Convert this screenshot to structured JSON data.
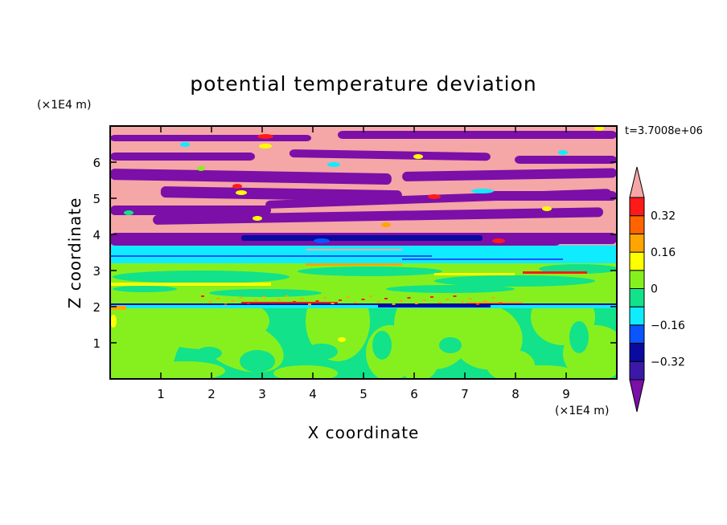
{
  "chart_data": {
    "type": "heatmap",
    "title": "potential temperature deviation",
    "xlabel": "X coordinate",
    "ylabel": "Z coordinate",
    "x_unit": "(×1E4 m)",
    "y_unit": "(×1E4 m)",
    "time_label": "t=3.7008e+06",
    "xlim": [
      0,
      10
    ],
    "ylim": [
      0,
      7
    ],
    "x_ticks": [
      1,
      2,
      3,
      4,
      5,
      6,
      7,
      8,
      9
    ],
    "y_ticks": [
      1,
      2,
      3,
      4,
      5,
      6
    ],
    "x_tick_labels": [
      "1",
      "2",
      "3",
      "4",
      "5",
      "6",
      "7",
      "8",
      "9"
    ],
    "y_tick_labels": [
      "1",
      "2",
      "3",
      "4",
      "5",
      "6"
    ],
    "colorbar": {
      "levels": [
        -0.4,
        -0.32,
        -0.24,
        -0.16,
        -0.08,
        0,
        0.08,
        0.16,
        0.24,
        0.32,
        0.4
      ],
      "colors": [
        "#7b0fa8",
        "#3b18a8",
        "#0a0aa0",
        "#0a55ff",
        "#10ecff",
        "#12e28a",
        "#86f01e",
        "#ffff00",
        "#ffa500",
        "#ff6400",
        "#ff1a1a",
        "#f5a6a6"
      ],
      "tick_labels": [
        "0.32",
        "0.16",
        "0",
        "−0.16",
        "−0.32"
      ],
      "tick_values": [
        0.32,
        0.16,
        0,
        -0.16,
        -0.32
      ]
    },
    "layers": [
      {
        "z_range": [
          0,
          2.0
        ],
        "description_values": [
          -0.04,
          0.04
        ]
      },
      {
        "z_range": [
          2.0,
          3.2
        ],
        "description_values": [
          0.0,
          0.04
        ]
      },
      {
        "z_range": [
          3.2,
          3.7
        ],
        "description_values": [
          -0.12
        ]
      },
      {
        "z_range": [
          3.7,
          7.0
        ],
        "description_values": [
          -0.4,
          0.4
        ]
      }
    ]
  }
}
